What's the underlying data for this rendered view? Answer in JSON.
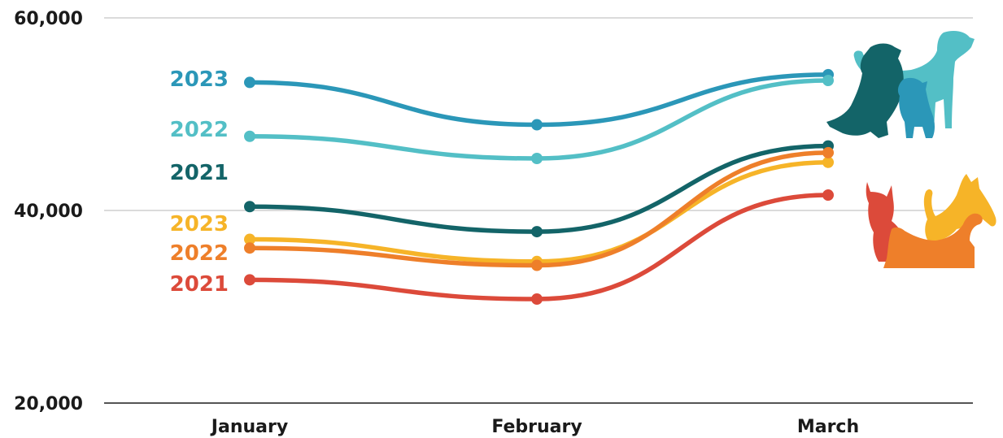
{
  "chart_data": {
    "type": "line",
    "categories": [
      "January",
      "February",
      "March"
    ],
    "y_ticks": [
      "20,000",
      "40,000",
      "60,000"
    ],
    "y_tick_values": [
      20000,
      40000,
      60000
    ],
    "ylim": [
      20000,
      60000
    ],
    "grid": true,
    "series": [
      {
        "name": "2023",
        "group": "dogs",
        "color": "#2b97b8",
        "values": [
          53300,
          48900,
          54100
        ]
      },
      {
        "name": "2022",
        "group": "dogs",
        "color": "#53bfc6",
        "values": [
          47700,
          45400,
          53500
        ]
      },
      {
        "name": "2021",
        "group": "dogs",
        "color": "#136468",
        "values": [
          40400,
          37800,
          46700
        ]
      },
      {
        "name": "2023",
        "group": "cats",
        "color": "#f6b428",
        "values": [
          37000,
          34700,
          45000
        ]
      },
      {
        "name": "2022",
        "group": "cats",
        "color": "#ee7f2a",
        "values": [
          36100,
          34300,
          46000
        ]
      },
      {
        "name": "2021",
        "group": "cats",
        "color": "#dc4a3a",
        "values": [
          32800,
          30800,
          41600
        ]
      }
    ],
    "icons": [
      {
        "name": "dogs-silhouette-icon",
        "colors": [
          "#136468",
          "#53bfc6",
          "#2b97b8"
        ]
      },
      {
        "name": "cats-silhouette-icon",
        "colors": [
          "#dc4a3a",
          "#f6b428",
          "#ee7f2a"
        ]
      }
    ]
  }
}
